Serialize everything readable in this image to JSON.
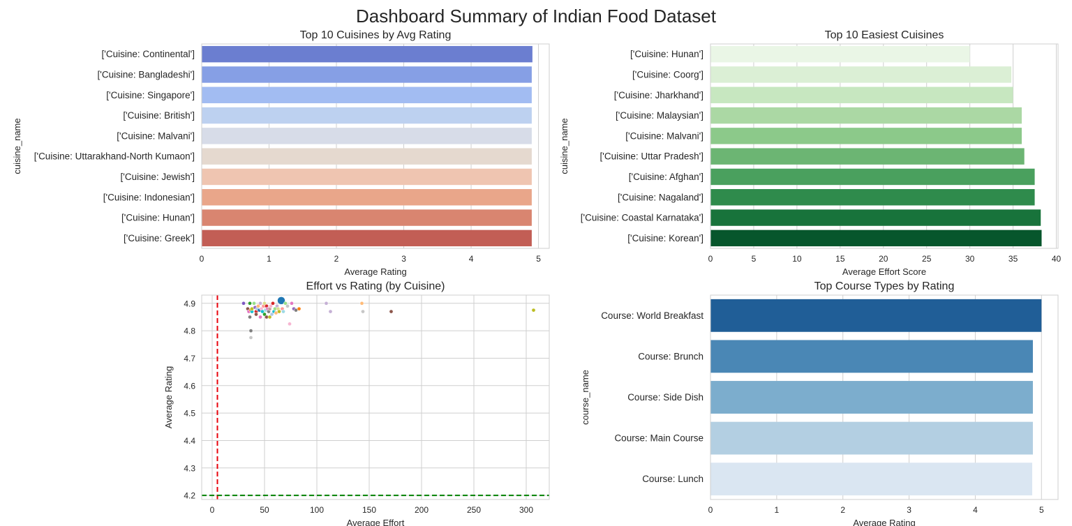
{
  "figure": {
    "title": "Dashboard Summary of Indian Food Dataset"
  },
  "chart_data": [
    {
      "id": "cuisines_rating",
      "type": "bar",
      "orientation": "horizontal",
      "title": "Top 10 Cuisines by Avg Rating",
      "xlabel": "Average Rating",
      "ylabel": "cuisine_name",
      "categories": [
        "['Cuisine: Continental']",
        "['Cuisine: Bangladeshi']",
        "['Cuisine: Singapore']",
        "['Cuisine: British']",
        "['Cuisine: Malvani']",
        "['Cuisine: Uttarakhand-North Kumaon']",
        "['Cuisine: Jewish']",
        "['Cuisine: Indonesian']",
        "['Cuisine: Hunan']",
        "['Cuisine: Greek']"
      ],
      "values": [
        4.91,
        4.9,
        4.9,
        4.9,
        4.9,
        4.9,
        4.9,
        4.9,
        4.9,
        4.9
      ],
      "xlim": [
        0,
        5.16
      ],
      "xticks": [
        0,
        1,
        2,
        3,
        4,
        5
      ],
      "colors": [
        "#6b7ed0",
        "#869fe5",
        "#a2bcf2",
        "#bdd1f0",
        "#d7dce8",
        "#e5d9cf",
        "#efc5b1",
        "#e9a68a",
        "#d98570",
        "#c25e55"
      ],
      "grid": "x"
    },
    {
      "id": "easiest_cuisines",
      "type": "bar",
      "orientation": "horizontal",
      "title": "Top 10 Easiest Cuisines",
      "xlabel": "Average Effort Score",
      "ylabel": "cuisine_name",
      "categories": [
        "['Cuisine: Hunan']",
        "['Cuisine: Coorg']",
        "['Cuisine: Jharkhand']",
        "['Cuisine: Malaysian']",
        "['Cuisine: Malvani']",
        "['Cuisine: Uttar Pradesh']",
        "['Cuisine: Afghan']",
        "['Cuisine: Nagaland']",
        "['Cuisine: Coastal Karnataka']",
        "['Cuisine: Korean']"
      ],
      "values": [
        30.0,
        34.8,
        35.0,
        36.0,
        36.0,
        36.3,
        37.5,
        37.5,
        38.2,
        38.3
      ],
      "xlim": [
        0,
        40.2
      ],
      "xticks": [
        0,
        5,
        10,
        15,
        20,
        25,
        30,
        35,
        40
      ],
      "colors": [
        "#eaf6e6",
        "#dbefd5",
        "#c7e7c0",
        "#abd8a4",
        "#8cc98a",
        "#6cb573",
        "#4aa05e",
        "#2f8b4c",
        "#18733b",
        "#07562c"
      ],
      "grid": "x"
    },
    {
      "id": "effort_vs_rating",
      "type": "scatter",
      "title": "Effort vs Rating (by Cuisine)",
      "xlabel": "Average Effort",
      "ylabel": "Average Rating",
      "xlim": [
        -10,
        322
      ],
      "ylim": [
        4.185,
        4.93
      ],
      "xticks": [
        0,
        50,
        100,
        150,
        200,
        250,
        300
      ],
      "yticks": [
        4.2,
        4.3,
        4.4,
        4.5,
        4.6,
        4.7,
        4.8,
        4.9
      ],
      "vline": {
        "x": 5,
        "color": "#e8000b",
        "style": "dashed"
      },
      "hline": {
        "y": 4.2,
        "color": "#008000",
        "style": "dashed"
      },
      "points": [
        {
          "x": 30,
          "y": 4.9,
          "c": "#7e57c2"
        },
        {
          "x": 34,
          "y": 4.88,
          "c": "#8c564b"
        },
        {
          "x": 35,
          "y": 4.87,
          "c": "#e377c2"
        },
        {
          "x": 36,
          "y": 4.85,
          "c": "#7f7f7f"
        },
        {
          "x": 36,
          "y": 4.9,
          "c": "#2ca02c"
        },
        {
          "x": 37,
          "y": 4.875,
          "c": "#ff7f0e"
        },
        {
          "x": 37,
          "y": 4.8,
          "c": "#7f7f7f"
        },
        {
          "x": 37,
          "y": 4.775,
          "c": "#c7c7c7"
        },
        {
          "x": 38,
          "y": 4.87,
          "c": "#17becf"
        },
        {
          "x": 38,
          "y": 4.88,
          "c": "#bcbd22"
        },
        {
          "x": 40,
          "y": 4.9,
          "c": "#98df8a"
        },
        {
          "x": 41,
          "y": 4.885,
          "c": "#9467bd"
        },
        {
          "x": 42,
          "y": 4.87,
          "c": "#d62728"
        },
        {
          "x": 42,
          "y": 4.86,
          "c": "#8c564b"
        },
        {
          "x": 43,
          "y": 4.88,
          "c": "#aec7e8"
        },
        {
          "x": 44,
          "y": 4.89,
          "c": "#ffbb78"
        },
        {
          "x": 45,
          "y": 4.875,
          "c": "#1f77b4"
        },
        {
          "x": 46,
          "y": 4.85,
          "c": "#e377c2"
        },
        {
          "x": 46,
          "y": 4.9,
          "c": "#c5b0d5"
        },
        {
          "x": 47,
          "y": 4.88,
          "c": "#f7b6d2"
        },
        {
          "x": 48,
          "y": 4.87,
          "c": "#17becf"
        },
        {
          "x": 49,
          "y": 4.89,
          "c": "#ff9896"
        },
        {
          "x": 50,
          "y": 4.86,
          "c": "#2ca02c"
        },
        {
          "x": 50,
          "y": 4.9,
          "c": "#dbdb8d"
        },
        {
          "x": 51,
          "y": 4.875,
          "c": "#9edae5"
        },
        {
          "x": 52,
          "y": 4.89,
          "c": "#d62728"
        },
        {
          "x": 52,
          "y": 4.85,
          "c": "#8c564b"
        },
        {
          "x": 53,
          "y": 4.88,
          "c": "#e377c2"
        },
        {
          "x": 54,
          "y": 4.87,
          "c": "#7f7f7f"
        },
        {
          "x": 55,
          "y": 4.85,
          "c": "#bcbd22"
        },
        {
          "x": 55,
          "y": 4.88,
          "c": "#c49c94"
        },
        {
          "x": 56,
          "y": 4.89,
          "c": "#f7b6d2"
        },
        {
          "x": 57,
          "y": 4.86,
          "c": "#aec7e8"
        },
        {
          "x": 58,
          "y": 4.9,
          "c": "#d62728"
        },
        {
          "x": 59,
          "y": 4.87,
          "c": "#17becf"
        },
        {
          "x": 60,
          "y": 4.88,
          "c": "#98df8a"
        },
        {
          "x": 61,
          "y": 4.865,
          "c": "#ffbb78"
        },
        {
          "x": 62,
          "y": 4.89,
          "c": "#c5b0d5"
        },
        {
          "x": 63,
          "y": 4.88,
          "c": "#dbdb8d"
        },
        {
          "x": 64,
          "y": 4.87,
          "c": "#bcbd22"
        },
        {
          "x": 66,
          "y": 4.91,
          "c": "#1f77b4",
          "size": "large"
        },
        {
          "x": 67,
          "y": 4.88,
          "c": "#ff9896"
        },
        {
          "x": 68,
          "y": 4.87,
          "c": "#9edae5"
        },
        {
          "x": 70,
          "y": 4.9,
          "c": "#98df8a"
        },
        {
          "x": 72,
          "y": 4.89,
          "c": "#c7c7c7"
        },
        {
          "x": 74,
          "y": 4.825,
          "c": "#f7b6d2"
        },
        {
          "x": 76,
          "y": 4.9,
          "c": "#e377c2"
        },
        {
          "x": 78,
          "y": 4.88,
          "c": "#9467bd"
        },
        {
          "x": 80,
          "y": 4.875,
          "c": "#7f7f7f"
        },
        {
          "x": 83,
          "y": 4.88,
          "c": "#ff7f0e"
        },
        {
          "x": 109,
          "y": 4.9,
          "c": "#c5b0d5"
        },
        {
          "x": 113,
          "y": 4.87,
          "c": "#c5b0d5"
        },
        {
          "x": 143,
          "y": 4.9,
          "c": "#ffbb78"
        },
        {
          "x": 144,
          "y": 4.87,
          "c": "#c7c7c7"
        },
        {
          "x": 171,
          "y": 4.87,
          "c": "#8c564b"
        },
        {
          "x": 307,
          "y": 4.875,
          "c": "#bcbd22"
        }
      ],
      "grid": "both"
    },
    {
      "id": "course_rating",
      "type": "bar",
      "orientation": "horizontal",
      "title": "Top Course Types by Rating",
      "xlabel": "Average Rating",
      "ylabel": "course_name",
      "categories": [
        "Course: World Breakfast",
        "Course: Brunch",
        "Course: Side Dish",
        "Course: Main Course",
        "Course: Lunch"
      ],
      "values": [
        5.0,
        4.87,
        4.87,
        4.87,
        4.86
      ],
      "xlim": [
        0,
        5.25
      ],
      "xticks": [
        0,
        1,
        2,
        3,
        4,
        5
      ],
      "colors": [
        "#205e97",
        "#4a87b5",
        "#7cadcd",
        "#b3cfe2",
        "#dae6f2"
      ],
      "grid": "x"
    }
  ]
}
